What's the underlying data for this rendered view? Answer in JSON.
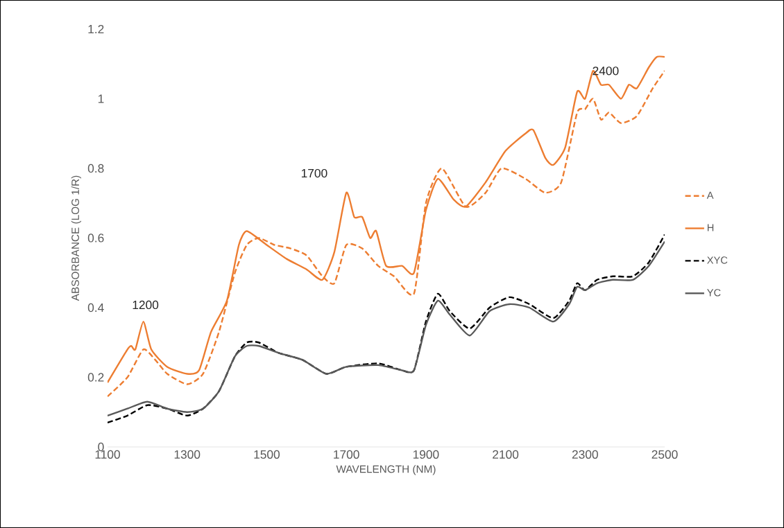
{
  "chart_data": {
    "type": "line",
    "xlabel": "WAVELENGTH (NM)",
    "ylabel": "ABSORBANCE (LOG 1/R)",
    "xlim": [
      1100,
      2500
    ],
    "xticks": [
      1100,
      1300,
      1500,
      1700,
      1900,
      2100,
      2300,
      2500
    ],
    "ylim": [
      0,
      1.2
    ],
    "yticks": [
      0,
      0.2,
      0.4,
      0.6,
      0.8,
      1,
      1.2
    ],
    "grid": false,
    "legend": "right",
    "marker": "none",
    "annotations": [
      "1200",
      "1700",
      "2400"
    ],
    "series": [
      {
        "name": "A",
        "color": "#ed7d31",
        "line_style": "dashed",
        "x": [
          1100,
          1150,
          1190,
          1220,
          1250,
          1300,
          1340,
          1380,
          1420,
          1450,
          1480,
          1520,
          1560,
          1600,
          1640,
          1670,
          1700,
          1740,
          1780,
          1820,
          1870,
          1900,
          1940,
          2000,
          2050,
          2090,
          2150,
          2200,
          2240,
          2280,
          2300,
          2320,
          2340,
          2360,
          2390,
          2430,
          2470,
          2500
        ],
        "values": [
          0.145,
          0.2,
          0.28,
          0.25,
          0.21,
          0.18,
          0.21,
          0.33,
          0.5,
          0.58,
          0.6,
          0.58,
          0.57,
          0.55,
          0.49,
          0.47,
          0.58,
          0.57,
          0.52,
          0.49,
          0.44,
          0.7,
          0.8,
          0.69,
          0.73,
          0.8,
          0.77,
          0.73,
          0.76,
          0.96,
          0.97,
          1.0,
          0.94,
          0.96,
          0.93,
          0.95,
          1.03,
          1.08
        ]
      },
      {
        "name": "H",
        "color": "#ed7d31",
        "line_style": "solid",
        "x": [
          1100,
          1150,
          1160,
          1170,
          1190,
          1210,
          1250,
          1300,
          1330,
          1360,
          1400,
          1430,
          1450,
          1500,
          1550,
          1600,
          1640,
          1670,
          1700,
          1720,
          1740,
          1760,
          1775,
          1800,
          1840,
          1870,
          1900,
          1930,
          1970,
          2000,
          2050,
          2100,
          2150,
          2170,
          2200,
          2220,
          2250,
          2280,
          2300,
          2320,
          2340,
          2360,
          2390,
          2410,
          2430,
          2460,
          2480,
          2500
        ],
        "values": [
          0.185,
          0.28,
          0.29,
          0.28,
          0.36,
          0.28,
          0.23,
          0.21,
          0.22,
          0.33,
          0.42,
          0.58,
          0.62,
          0.58,
          0.54,
          0.51,
          0.48,
          0.56,
          0.73,
          0.66,
          0.66,
          0.6,
          0.62,
          0.52,
          0.52,
          0.5,
          0.68,
          0.77,
          0.71,
          0.69,
          0.76,
          0.85,
          0.9,
          0.91,
          0.83,
          0.81,
          0.86,
          1.02,
          1.0,
          1.08,
          1.04,
          1.04,
          1.0,
          1.04,
          1.03,
          1.09,
          1.12,
          1.12
        ]
      },
      {
        "name": "XYC",
        "color": "#000000",
        "line_style": "dashed",
        "x": [
          1100,
          1150,
          1200,
          1250,
          1300,
          1340,
          1380,
          1420,
          1450,
          1480,
          1530,
          1590,
          1650,
          1700,
          1780,
          1840,
          1870,
          1900,
          1930,
          1960,
          2010,
          2060,
          2110,
          2160,
          2220,
          2260,
          2280,
          2300,
          2330,
          2370,
          2420,
          2460,
          2500
        ],
        "values": [
          0.07,
          0.09,
          0.12,
          0.11,
          0.09,
          0.11,
          0.16,
          0.26,
          0.3,
          0.3,
          0.27,
          0.25,
          0.21,
          0.23,
          0.24,
          0.22,
          0.22,
          0.36,
          0.44,
          0.39,
          0.34,
          0.4,
          0.43,
          0.41,
          0.37,
          0.42,
          0.47,
          0.45,
          0.48,
          0.49,
          0.49,
          0.53,
          0.61
        ]
      },
      {
        "name": "YC",
        "color": "#595959",
        "line_style": "solid",
        "x": [
          1100,
          1150,
          1200,
          1250,
          1300,
          1340,
          1380,
          1420,
          1450,
          1480,
          1530,
          1590,
          1650,
          1700,
          1780,
          1840,
          1870,
          1900,
          1930,
          1960,
          2010,
          2060,
          2110,
          2160,
          2220,
          2260,
          2280,
          2300,
          2330,
          2370,
          2420,
          2460,
          2500
        ],
        "values": [
          0.09,
          0.11,
          0.13,
          0.11,
          0.1,
          0.11,
          0.16,
          0.26,
          0.29,
          0.29,
          0.27,
          0.25,
          0.21,
          0.23,
          0.235,
          0.22,
          0.22,
          0.35,
          0.42,
          0.38,
          0.32,
          0.39,
          0.41,
          0.4,
          0.36,
          0.41,
          0.46,
          0.45,
          0.47,
          0.48,
          0.48,
          0.52,
          0.59
        ]
      }
    ]
  }
}
